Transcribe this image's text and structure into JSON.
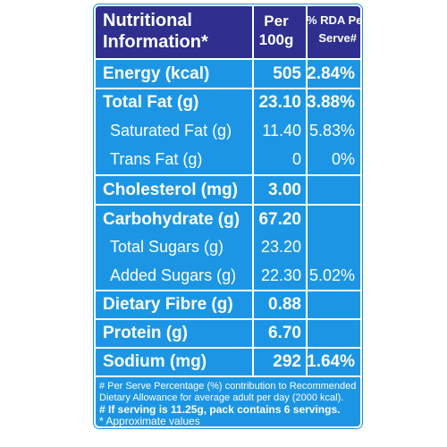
{
  "header": {
    "col1": [
      "Nutritional",
      "Information*"
    ],
    "col2": [
      "Per",
      "100g"
    ],
    "col3": [
      "% RDA Per",
      "Serve#"
    ]
  },
  "rows": [
    {
      "label": "Energy (kcal)",
      "per100g": "505",
      "rda": "2.84%"
    },
    {
      "label": "Total Fat (g)",
      "per100g": "23.10",
      "rda": "3.88%"
    },
    {
      "label": "Saturated Fat (g)",
      "per100g": "11.40",
      "rda": "5.83%"
    },
    {
      "label": "Trans Fat (g)",
      "per100g": "0",
      "rda": "0%"
    },
    {
      "label": "Cholesterol (mg)",
      "per100g": "3.00",
      "rda": ""
    },
    {
      "label": "Carbohydrate (g)",
      "per100g": "67.20",
      "rda": ""
    },
    {
      "label": "Total Sugars (g)",
      "per100g": "23.20",
      "rda": ""
    },
    {
      "label": "Added Sugars (g)",
      "per100g": "22.30",
      "rda": "5.02%"
    },
    {
      "label": "Dietary Fibre (g)",
      "per100g": "0.88",
      "rda": ""
    },
    {
      "label": "Protein (g)",
      "per100g": "6.70",
      "rda": ""
    },
    {
      "label": "Sodium (mg)",
      "per100g": "292",
      "rda": "1.64%"
    }
  ],
  "footer": {
    "line1": "# Per Serve Percentage (%) contribution to Recommended",
    "line2": "Dietary Allowance for average adult per day (2000 kcal).",
    "line3": "# If serving is 11.25g, pack contains 6 servings.",
    "line4": "* Approximate values"
  },
  "colors": {
    "panel": "#1c96e4",
    "header": "#2e2f8e",
    "lines": "#ffffff",
    "text": "#ffffff"
  }
}
